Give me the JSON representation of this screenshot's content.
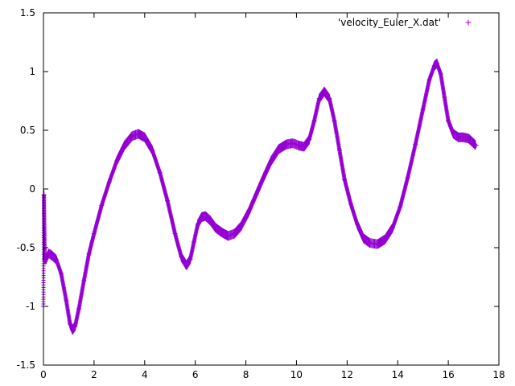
{
  "chart_data": {
    "type": "scatter",
    "title": "",
    "xlabel": "",
    "ylabel": "",
    "xlim": [
      0,
      18
    ],
    "ylim": [
      -1.5,
      1.5
    ],
    "x_ticks": [
      "0",
      "2",
      "4",
      "6",
      "8",
      "10",
      "12",
      "14",
      "16",
      "18"
    ],
    "y_ticks": [
      "-1.5",
      "-1",
      "-0.5",
      "0",
      "0.5",
      "1",
      "1.5"
    ],
    "grid": false,
    "legend_position": "top-right",
    "series": [
      {
        "name": "'velocity_Euler_X.dat'",
        "marker": "+",
        "color": "#9400d3",
        "points": [
          [
            0.0,
            -1.0
          ],
          [
            0.02,
            -0.05
          ],
          [
            0.05,
            -0.6
          ],
          [
            0.1,
            -0.6
          ],
          [
            0.2,
            -0.55
          ],
          [
            0.3,
            -0.56
          ],
          [
            0.5,
            -0.6
          ],
          [
            0.7,
            -0.72
          ],
          [
            0.9,
            -0.95
          ],
          [
            1.05,
            -1.15
          ],
          [
            1.15,
            -1.2
          ],
          [
            1.25,
            -1.17
          ],
          [
            1.4,
            -1.02
          ],
          [
            1.6,
            -0.78
          ],
          [
            1.8,
            -0.55
          ],
          [
            2.0,
            -0.38
          ],
          [
            2.3,
            -0.14
          ],
          [
            2.6,
            0.06
          ],
          [
            2.9,
            0.24
          ],
          [
            3.2,
            0.37
          ],
          [
            3.5,
            0.45
          ],
          [
            3.75,
            0.47
          ],
          [
            4.0,
            0.44
          ],
          [
            4.3,
            0.33
          ],
          [
            4.6,
            0.14
          ],
          [
            4.9,
            -0.1
          ],
          [
            5.2,
            -0.38
          ],
          [
            5.45,
            -0.58
          ],
          [
            5.65,
            -0.65
          ],
          [
            5.8,
            -0.6
          ],
          [
            5.95,
            -0.45
          ],
          [
            6.1,
            -0.3
          ],
          [
            6.25,
            -0.24
          ],
          [
            6.4,
            -0.23
          ],
          [
            6.6,
            -0.27
          ],
          [
            6.8,
            -0.33
          ],
          [
            7.05,
            -0.37
          ],
          [
            7.3,
            -0.4
          ],
          [
            7.55,
            -0.38
          ],
          [
            7.8,
            -0.32
          ],
          [
            8.1,
            -0.2
          ],
          [
            8.4,
            -0.05
          ],
          [
            8.7,
            0.1
          ],
          [
            9.0,
            0.24
          ],
          [
            9.3,
            0.34
          ],
          [
            9.6,
            0.38
          ],
          [
            9.85,
            0.39
          ],
          [
            10.1,
            0.37
          ],
          [
            10.3,
            0.36
          ],
          [
            10.5,
            0.42
          ],
          [
            10.7,
            0.58
          ],
          [
            10.9,
            0.77
          ],
          [
            11.1,
            0.83
          ],
          [
            11.3,
            0.77
          ],
          [
            11.5,
            0.58
          ],
          [
            11.7,
            0.33
          ],
          [
            11.9,
            0.08
          ],
          [
            12.15,
            -0.13
          ],
          [
            12.4,
            -0.3
          ],
          [
            12.65,
            -0.42
          ],
          [
            12.9,
            -0.46
          ],
          [
            13.2,
            -0.47
          ],
          [
            13.5,
            -0.43
          ],
          [
            13.8,
            -0.33
          ],
          [
            14.1,
            -0.15
          ],
          [
            14.4,
            0.1
          ],
          [
            14.7,
            0.38
          ],
          [
            15.0,
            0.68
          ],
          [
            15.25,
            0.93
          ],
          [
            15.45,
            1.05
          ],
          [
            15.55,
            1.07
          ],
          [
            15.7,
            0.98
          ],
          [
            15.85,
            0.78
          ],
          [
            16.0,
            0.58
          ],
          [
            16.2,
            0.47
          ],
          [
            16.4,
            0.44
          ],
          [
            16.6,
            0.44
          ],
          [
            16.8,
            0.43
          ],
          [
            17.0,
            0.39
          ],
          [
            17.1,
            0.37
          ]
        ]
      }
    ]
  }
}
